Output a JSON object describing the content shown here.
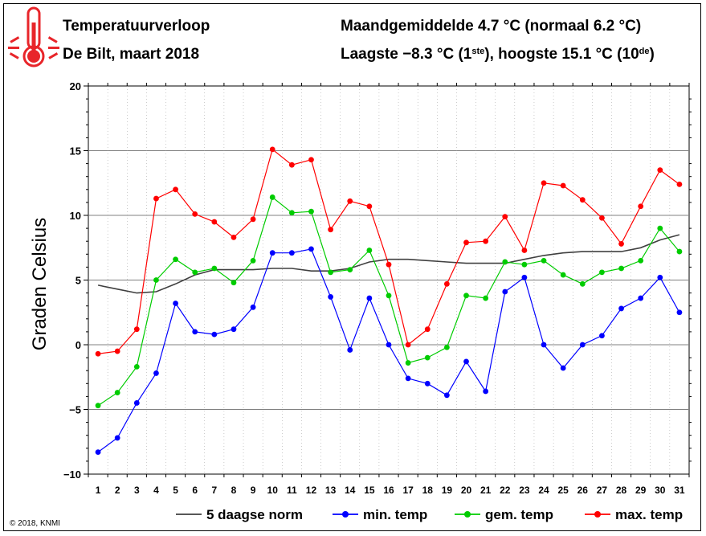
{
  "header": {
    "title": "Temperatuurverloop",
    "subtitle": "De Bilt, maart 2018",
    "avg_text": "Maandgemiddelde 4.7 °C (normaal 6.2 °C)",
    "ext_text_a": "Laagste −8.3 °C (1",
    "ext_sup_a": "ste",
    "ext_text_b": "), hoogste 15.1 °C (10",
    "ext_sup_b": "de",
    "ext_text_c": ")"
  },
  "icon": "thermometer-icon",
  "copyright": "© 2018, KNMI",
  "colors": {
    "norm": "#404040",
    "min": "#0000ff",
    "mean": "#00cc00",
    "max": "#ff0000",
    "thermometer": "#e8252a",
    "grid": "#808080"
  },
  "chart_data": {
    "type": "line",
    "ylabel": "Graden Celsius",
    "xlabel": "",
    "ylim": [
      -10,
      20
    ],
    "yticks": [
      -10,
      -5,
      0,
      5,
      10,
      15,
      20
    ],
    "grid": true,
    "legend_position": "bottom",
    "x": [
      1,
      2,
      3,
      4,
      5,
      6,
      7,
      8,
      9,
      10,
      11,
      12,
      13,
      14,
      15,
      16,
      17,
      18,
      19,
      20,
      21,
      22,
      23,
      24,
      25,
      26,
      27,
      28,
      29,
      30,
      31
    ],
    "series": [
      {
        "name": "5 daagse norm",
        "key": "norm",
        "marker": false,
        "values": [
          4.6,
          4.3,
          4.0,
          4.1,
          4.7,
          5.4,
          5.8,
          5.8,
          5.8,
          5.9,
          5.9,
          5.7,
          5.7,
          5.9,
          6.4,
          6.6,
          6.6,
          6.5,
          6.4,
          6.3,
          6.3,
          6.3,
          6.6,
          6.9,
          7.1,
          7.2,
          7.2,
          7.2,
          7.5,
          8.1,
          8.5
        ]
      },
      {
        "name": "min. temp",
        "key": "min",
        "marker": true,
        "values": [
          -8.3,
          -7.2,
          -4.5,
          -2.2,
          3.2,
          1.0,
          0.8,
          1.2,
          2.9,
          7.1,
          7.1,
          7.4,
          3.7,
          -0.4,
          3.6,
          0.0,
          -2.6,
          -3.0,
          -3.9,
          -1.3,
          -3.6,
          4.1,
          5.2,
          0.0,
          -1.8,
          0.0,
          0.7,
          2.8,
          3.6,
          5.2,
          2.5
        ]
      },
      {
        "name": "gem. temp",
        "key": "mean",
        "marker": true,
        "values": [
          -4.7,
          -3.7,
          -1.7,
          5.0,
          6.6,
          5.6,
          5.9,
          4.8,
          6.5,
          11.4,
          10.2,
          10.3,
          5.6,
          5.8,
          7.3,
          3.8,
          -1.4,
          -1.0,
          -0.2,
          3.8,
          3.6,
          6.4,
          6.2,
          6.5,
          5.4,
          4.7,
          5.6,
          5.9,
          6.5,
          9.0,
          7.2
        ]
      },
      {
        "name": "max. temp",
        "key": "max",
        "marker": true,
        "values": [
          -0.7,
          -0.5,
          1.2,
          11.3,
          12.0,
          10.1,
          9.5,
          8.3,
          9.7,
          15.1,
          13.9,
          14.3,
          8.9,
          11.1,
          10.7,
          6.2,
          0.0,
          1.2,
          4.7,
          7.9,
          8.0,
          9.9,
          7.3,
          12.5,
          12.3,
          11.2,
          9.8,
          7.8,
          10.7,
          13.5,
          12.4
        ]
      }
    ]
  }
}
